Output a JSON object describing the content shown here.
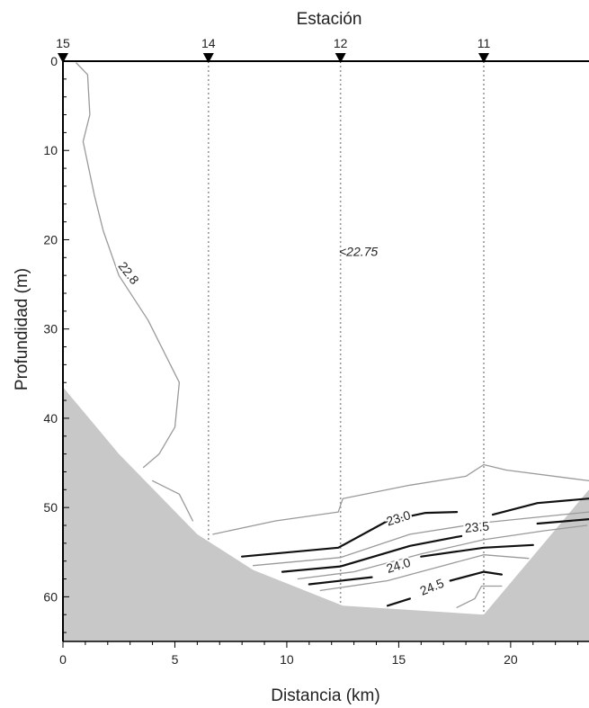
{
  "chart_data": {
    "type": "contour",
    "title": "",
    "top_axis": {
      "label": "Estación",
      "stations": [
        {
          "name": "15",
          "distance_km": 0
        },
        {
          "name": "14",
          "distance_km": 6.5
        },
        {
          "name": "12",
          "distance_km": 12.4
        },
        {
          "name": "11",
          "distance_km": 18.8
        }
      ]
    },
    "xlabel": "Distancia (km)",
    "ylabel": "Profundidad (m)",
    "xlim": [
      0,
      23.5
    ],
    "ylim": [
      0,
      65
    ],
    "y_inverted": true,
    "xticks": [
      0,
      5,
      10,
      15,
      20
    ],
    "yticks": [
      0,
      10,
      20,
      30,
      40,
      50,
      60
    ],
    "grid": false,
    "bathymetry": {
      "color": "#c8c8c8",
      "bottom_profile": [
        [
          0,
          36.5
        ],
        [
          2.5,
          44
        ],
        [
          6.0,
          53
        ],
        [
          8.5,
          57
        ],
        [
          12.5,
          61
        ],
        [
          18.8,
          62
        ],
        [
          23.5,
          48
        ]
      ]
    },
    "contours": [
      {
        "level": 22.8,
        "label": "22.8",
        "style": "thin-gray",
        "points": [
          [
            0.6,
            0.2
          ],
          [
            1.1,
            1.5
          ],
          [
            1.2,
            6
          ],
          [
            0.9,
            9
          ],
          [
            1.4,
            15
          ],
          [
            1.8,
            19
          ],
          [
            2.5,
            24
          ],
          [
            3.8,
            29
          ],
          [
            5.2,
            36
          ],
          [
            5.0,
            41
          ],
          [
            4.3,
            44
          ],
          [
            3.6,
            45.5
          ]
        ]
      },
      {
        "level": 22.8,
        "label": "",
        "style": "thin-gray",
        "points": [
          [
            4.0,
            47
          ],
          [
            5.2,
            48.5
          ],
          [
            5.8,
            51.5
          ]
        ]
      },
      {
        "level": 22.8,
        "label": "",
        "style": "thin-gray",
        "points": [
          [
            6.7,
            53
          ],
          [
            9.5,
            51.5
          ],
          [
            12.3,
            50.5
          ],
          [
            12.5,
            49
          ],
          [
            15.5,
            47.5
          ],
          [
            18.0,
            46.5
          ],
          [
            18.8,
            45.2
          ],
          [
            19.8,
            45.8
          ],
          [
            23.5,
            47
          ]
        ]
      },
      {
        "level": 23.0,
        "label": "23.0",
        "style": "bold-black",
        "points": [
          [
            8.0,
            55.5
          ],
          [
            12.3,
            54.5
          ],
          [
            14.5,
            51.5
          ],
          [
            16.2,
            50.6
          ],
          [
            17.6,
            50.5
          ]
        ]
      },
      {
        "level": 23.0,
        "label": "",
        "style": "bold-black",
        "points": [
          [
            19.2,
            50.8
          ],
          [
            21.2,
            49.5
          ],
          [
            23.5,
            49
          ]
        ]
      },
      {
        "level": 23.25,
        "label": "",
        "style": "thin-gray",
        "points": [
          [
            8.5,
            56.5
          ],
          [
            12.4,
            55.6
          ],
          [
            15.5,
            53.0
          ],
          [
            18.8,
            51.7
          ],
          [
            21.5,
            51.0
          ],
          [
            23.5,
            50.5
          ]
        ]
      },
      {
        "level": 23.5,
        "label": "23.5",
        "style": "bold-black",
        "points": [
          [
            9.8,
            57.2
          ],
          [
            12.4,
            56.6
          ],
          [
            15.5,
            54.3
          ],
          [
            17.8,
            53.2
          ]
        ]
      },
      {
        "level": 23.5,
        "label": "",
        "style": "bold-black",
        "points": [
          [
            21.2,
            51.8
          ],
          [
            23.5,
            51.3
          ]
        ]
      },
      {
        "level": 23.75,
        "label": "",
        "style": "thin-gray",
        "points": [
          [
            10.5,
            58.0
          ],
          [
            13.0,
            57.2
          ],
          [
            16.0,
            55.2
          ],
          [
            18.8,
            53.6
          ],
          [
            21.5,
            52.6
          ],
          [
            23.4,
            52.0
          ]
        ]
      },
      {
        "level": 24.0,
        "label": "24.0",
        "style": "bold-black",
        "points": [
          [
            11.0,
            58.6
          ],
          [
            13.8,
            57.8
          ]
        ]
      },
      {
        "level": 24.0,
        "label": "",
        "style": "bold-black",
        "points": [
          [
            16.0,
            55.5
          ],
          [
            18.8,
            54.5
          ],
          [
            21.0,
            54.2
          ]
        ]
      },
      {
        "level": 24.25,
        "label": "",
        "style": "thin-gray",
        "points": [
          [
            11.5,
            59.3
          ],
          [
            14.5,
            58.2
          ],
          [
            17.0,
            56.5
          ],
          [
            18.8,
            55.3
          ],
          [
            20.8,
            55.7
          ]
        ]
      },
      {
        "level": 24.5,
        "label": "24.5",
        "style": "bold-black",
        "points": [
          [
            14.5,
            61.0
          ],
          [
            15.5,
            60.2
          ]
        ]
      },
      {
        "level": 24.5,
        "label": "",
        "style": "bold-black",
        "points": [
          [
            17.3,
            58.2
          ],
          [
            18.8,
            57.2
          ],
          [
            19.6,
            57.5
          ]
        ]
      },
      {
        "level": 24.75,
        "label": "",
        "style": "thin-gray",
        "points": [
          [
            17.6,
            61.2
          ],
          [
            18.4,
            60.2
          ],
          [
            18.7,
            58.8
          ],
          [
            19.6,
            58.8
          ]
        ]
      }
    ],
    "contour_labels": [
      {
        "text": "22.8",
        "x": 2.9,
        "y": 23.8,
        "angle": 52
      },
      {
        "text": "23.0",
        "x": 15.0,
        "y": 51.3,
        "angle": -17
      },
      {
        "text": "23.5",
        "x": 18.5,
        "y": 52.3,
        "angle": -5
      },
      {
        "text": "24.0",
        "x": 15.0,
        "y": 56.6,
        "angle": -17
      },
      {
        "text": "24.5",
        "x": 16.5,
        "y": 59.0,
        "angle": -22
      }
    ],
    "annotations": [
      {
        "text": "<22.75",
        "x": 13.2,
        "y": 21.8
      }
    ]
  }
}
